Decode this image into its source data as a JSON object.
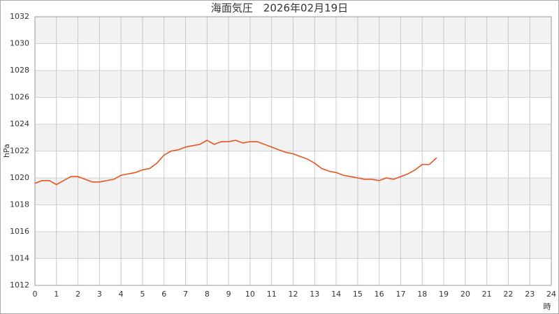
{
  "chart_data": {
    "type": "line",
    "title": "海面気圧　2026年02月19日",
    "y_label": "hPa",
    "x_label": "時",
    "x": [
      0,
      0.33,
      0.67,
      1,
      1.33,
      1.67,
      2,
      2.33,
      2.67,
      3,
      3.33,
      3.67,
      4,
      4.33,
      4.67,
      5,
      5.33,
      5.67,
      6,
      6.33,
      6.67,
      7,
      7.33,
      7.67,
      8,
      8.33,
      8.67,
      9,
      9.33,
      9.67,
      10,
      10.33,
      10.67,
      11,
      11.33,
      11.67,
      12,
      12.33,
      12.67,
      13,
      13.33,
      13.67,
      14,
      14.33,
      14.67,
      15,
      15.33,
      15.67,
      16,
      16.33,
      16.67,
      17,
      17.33,
      17.67,
      18,
      18.33,
      18.67
    ],
    "series": [
      {
        "name": "海面気圧",
        "color": "#e8541e",
        "values": [
          1019.6,
          1019.8,
          1019.8,
          1019.5,
          1019.8,
          1020.1,
          1020.1,
          1019.9,
          1019.7,
          1019.7,
          1019.8,
          1019.9,
          1020.2,
          1020.3,
          1020.4,
          1020.6,
          1020.7,
          1021.1,
          1021.7,
          1022.0,
          1022.1,
          1022.3,
          1022.4,
          1022.5,
          1022.8,
          1022.5,
          1022.7,
          1022.7,
          1022.8,
          1022.6,
          1022.7,
          1022.7,
          1022.5,
          1022.3,
          1022.1,
          1021.9,
          1021.8,
          1021.6,
          1021.4,
          1021.1,
          1020.7,
          1020.5,
          1020.4,
          1020.2,
          1020.1,
          1020.0,
          1019.9,
          1019.9,
          1019.8,
          1020.0,
          1019.9,
          1020.1,
          1020.3,
          1020.6,
          1021.0,
          1021.0,
          1021.5
        ]
      }
    ],
    "xlim": [
      0,
      24
    ],
    "xticks": [
      0,
      1,
      2,
      3,
      4,
      5,
      6,
      7,
      8,
      9,
      10,
      11,
      12,
      13,
      14,
      15,
      16,
      17,
      18,
      19,
      20,
      21,
      22,
      23,
      24
    ],
    "ylim": [
      1012,
      1032
    ],
    "yticks": [
      1012,
      1014,
      1016,
      1018,
      1020,
      1022,
      1024,
      1026,
      1028,
      1030,
      1032
    ],
    "grid": true
  }
}
